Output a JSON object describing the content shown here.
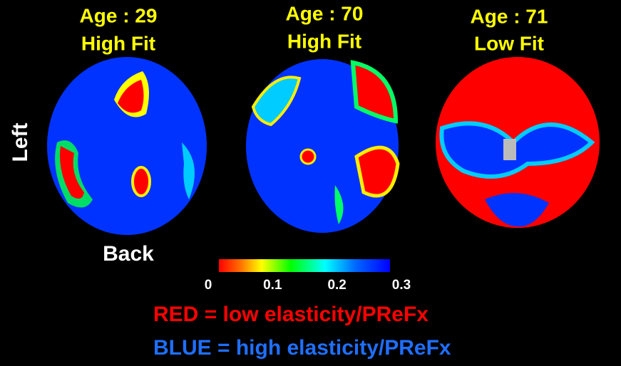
{
  "panels": [
    {
      "age": "Age : 29",
      "fitness": "High Fit"
    },
    {
      "age": "Age : 70",
      "fitness": "High Fit"
    },
    {
      "age": "Age : 71",
      "fitness": "Low Fit"
    }
  ],
  "orientation": {
    "side": "Left",
    "bottom": "Back"
  },
  "colorbar": {
    "range": [
      0,
      0.3
    ],
    "ticks": [
      0,
      0.1,
      0.2,
      0.3
    ]
  },
  "legend": [
    "RED = low elasticity/PReFx",
    "BLUE = high elasticity/PReFx"
  ]
}
